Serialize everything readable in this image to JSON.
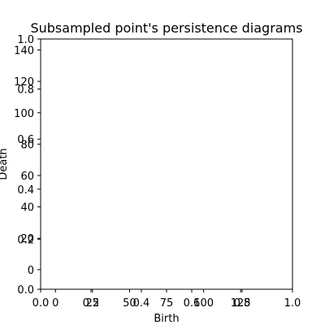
{
  "chart_data": {
    "type": "scatter",
    "title": "Subsampled point's persistence diagrams",
    "xlabel": "Birth",
    "ylabel": "Death",
    "grid": false,
    "series": [],
    "axes": {
      "x_primary": {
        "range": [
          0,
          1
        ],
        "ticks": [
          0.0,
          0.2,
          0.4,
          0.6,
          0.8,
          1.0
        ],
        "tick_labels": [
          "0.0",
          "0.2",
          "0.4",
          "0.6",
          "0.8",
          "1.0"
        ]
      },
      "y_primary": {
        "range": [
          0,
          1
        ],
        "ticks": [
          0.0,
          0.2,
          0.4,
          0.6,
          0.8,
          1.0
        ],
        "tick_labels": [
          "0.0",
          "0.2",
          "0.4",
          "0.6",
          "0.8",
          "1.0"
        ]
      },
      "x_secondary": {
        "range": [
          -10,
          160
        ],
        "ticks": [
          0,
          25,
          50,
          75,
          100,
          125
        ],
        "tick_labels": [
          "0",
          "25",
          "50",
          "75",
          "100",
          "125"
        ]
      },
      "y_secondary": {
        "range": [
          -12.5,
          147
        ],
        "ticks": [
          0,
          20,
          40,
          60,
          80,
          100,
          120,
          140
        ],
        "tick_labels": [
          "0",
          "20",
          "40",
          "60",
          "80",
          "100",
          "120",
          "140"
        ]
      }
    }
  }
}
